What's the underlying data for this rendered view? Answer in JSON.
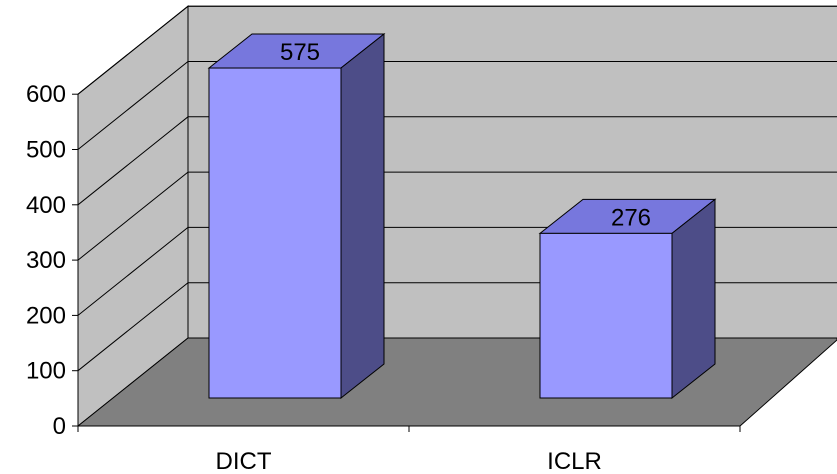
{
  "chart_data": {
    "type": "bar",
    "style": "3d-column",
    "categories": [
      "DICT",
      "ICLR"
    ],
    "values": [
      575,
      276
    ],
    "data_labels": [
      "575",
      "276"
    ],
    "title": "",
    "xlabel": "",
    "ylabel": "",
    "ylim": [
      0,
      600
    ],
    "yticks": [
      0,
      100,
      200,
      300,
      400,
      500,
      600
    ],
    "ytick_labels": [
      "0",
      "100",
      "200",
      "300",
      "400",
      "500",
      "600"
    ],
    "grid": true,
    "legend": "none",
    "colors": {
      "bar_front": "#9999FF",
      "bar_top": "#7777DD",
      "bar_side": "#4D4D88",
      "back_wall": "#C0C0C0",
      "side_wall": "#C0C0C0",
      "floor": "#808080",
      "gridline": "#000000"
    }
  }
}
